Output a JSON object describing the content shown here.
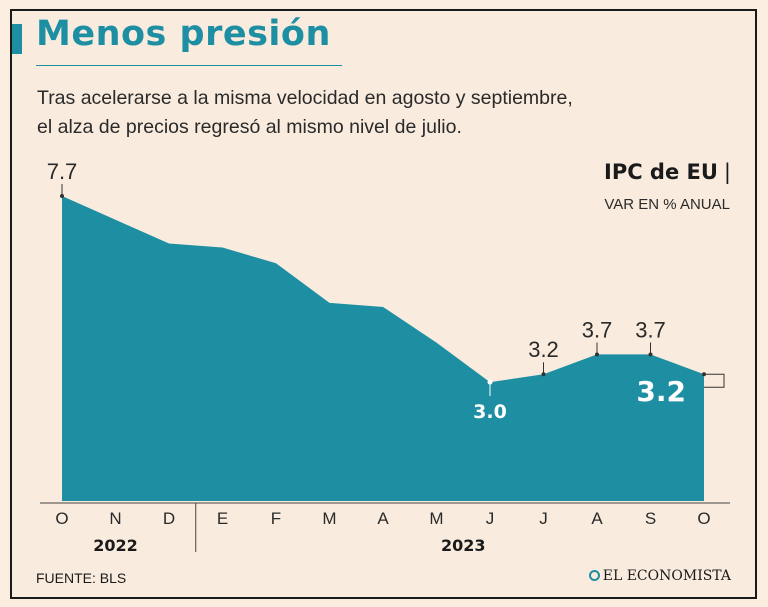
{
  "title": "Menos presión",
  "subtitle_lines": [
    "Tras acelerarse a la misma velocidad en agosto y septiembre,",
    "el alza de precios regresó al mismo nivel de julio."
  ],
  "series_title": "IPC de EU",
  "series_pipe": "|",
  "series_unit": "VAR EN % ANUAL",
  "source": "FUENTE: BLS",
  "brand": "EL ECONOMISTA",
  "colors": {
    "area": "#1e8fa3",
    "title": "#1e8fa3",
    "background": "#f9ecde"
  },
  "chart_data": {
    "type": "area",
    "title": "IPC de EU",
    "ylabel": "VAR EN % ANUAL",
    "categories": [
      "O",
      "N",
      "D",
      "E",
      "F",
      "M",
      "A",
      "M",
      "J",
      "J",
      "A",
      "S",
      "O"
    ],
    "values": [
      7.7,
      7.1,
      6.5,
      6.4,
      6.0,
      5.0,
      4.9,
      4.0,
      3.0,
      3.2,
      3.7,
      3.7,
      3.2
    ],
    "ylim": [
      0,
      7.7
    ],
    "years": [
      {
        "label": "2022",
        "start_index": 0,
        "end_index": 2
      },
      {
        "label": "2023",
        "start_index": 3,
        "end_index": 12
      }
    ],
    "labels": [
      {
        "index": 0,
        "text": "7.7",
        "position": "above"
      },
      {
        "index": 8,
        "text": "3.0",
        "position": "inside"
      },
      {
        "index": 9,
        "text": "3.2",
        "position": "above"
      },
      {
        "index": 10,
        "text": "3.7",
        "position": "above"
      },
      {
        "index": 11,
        "text": "3.7",
        "position": "above"
      },
      {
        "index": 12,
        "text": "3.2",
        "position": "last"
      }
    ]
  }
}
